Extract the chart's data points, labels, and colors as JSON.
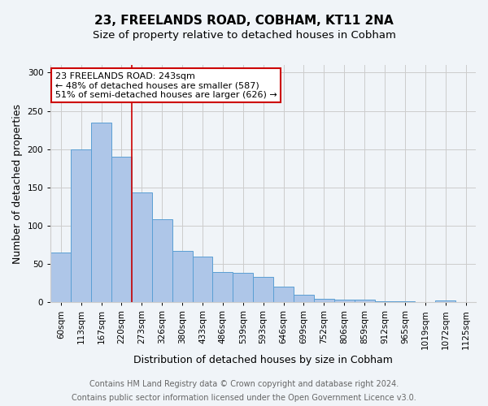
{
  "title": "23, FREELANDS ROAD, COBHAM, KT11 2NA",
  "subtitle": "Size of property relative to detached houses in Cobham",
  "xlabel": "Distribution of detached houses by size in Cobham",
  "ylabel": "Number of detached properties",
  "footnote1": "Contains HM Land Registry data © Crown copyright and database right 2024.",
  "footnote2": "Contains public sector information licensed under the Open Government Licence v3.0.",
  "categories": [
    "60sqm",
    "113sqm",
    "167sqm",
    "220sqm",
    "273sqm",
    "326sqm",
    "380sqm",
    "433sqm",
    "486sqm",
    "539sqm",
    "593sqm",
    "646sqm",
    "699sqm",
    "752sqm",
    "806sqm",
    "859sqm",
    "912sqm",
    "965sqm",
    "1019sqm",
    "1072sqm",
    "1125sqm"
  ],
  "values": [
    65,
    200,
    235,
    190,
    143,
    108,
    67,
    60,
    40,
    39,
    33,
    20,
    10,
    5,
    4,
    4,
    1,
    1,
    0,
    2,
    0
  ],
  "bar_color": "#aec6e8",
  "bar_edge_color": "#5a9fd4",
  "vline_x": 3.5,
  "vline_color": "#cc0000",
  "annotation_line1": "23 FREELANDS ROAD: 243sqm",
  "annotation_line2": "← 48% of detached houses are smaller (587)",
  "annotation_line3": "51% of semi-detached houses are larger (626) →",
  "annotation_box_color": "white",
  "annotation_box_edge": "#cc0000",
  "ylim": [
    0,
    310
  ],
  "background_color": "#f0f4f8",
  "grid_color": "#cccccc",
  "title_fontsize": 11,
  "subtitle_fontsize": 9.5,
  "axis_label_fontsize": 9,
  "tick_fontsize": 7.5,
  "footnote_fontsize": 7,
  "annotation_fontsize": 8
}
